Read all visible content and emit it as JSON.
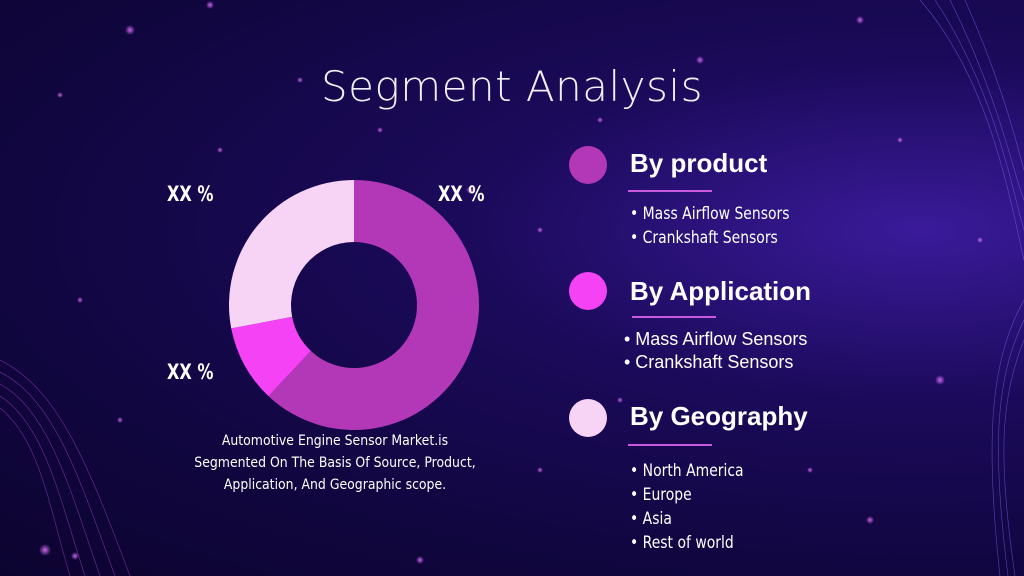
{
  "slide": {
    "title": "Segment Analysis"
  },
  "chart_data": {
    "type": "pie",
    "subtype": "donut",
    "segments": [
      {
        "label": "XX %",
        "value": 62,
        "color": "#b238b8"
      },
      {
        "label": "XX %",
        "value": 10,
        "color": "#f442f4"
      },
      {
        "label": "XX %",
        "value": 28,
        "color": "#f7d3f5"
      }
    ],
    "caption": "Automotive Engine Sensor Market.is Segmented On The Basis Of Source, Product, Application, And Geographic scope."
  },
  "segments": [
    {
      "heading": "By product",
      "color": "#b238b8",
      "items": [
        "• Mass Airflow Sensors",
        "• Crankshaft Sensors"
      ]
    },
    {
      "heading": "By Application",
      "color": "#f442f4",
      "items": [
        "• Mass Airflow Sensors",
        "• Crankshaft Sensors"
      ]
    },
    {
      "heading": "By Geography",
      "color": "#f7d3f5",
      "items": [
        "• North America",
        "• Europe",
        "• Asia",
        "• Rest of world"
      ]
    }
  ]
}
